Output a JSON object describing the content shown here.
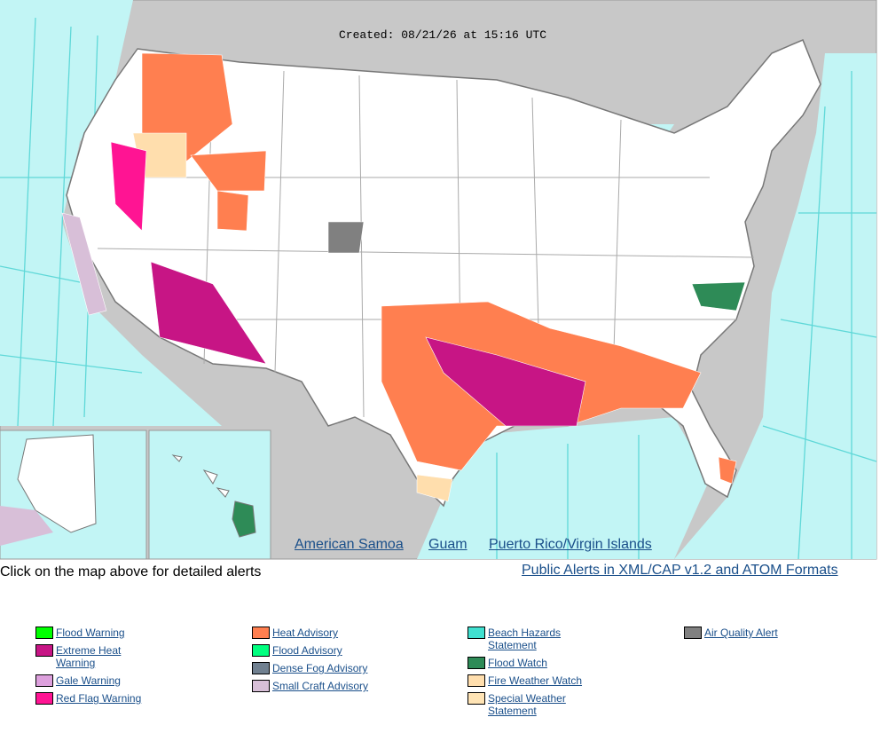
{
  "header": {
    "created": "Created: 08/21/26 at 15:16 UTC"
  },
  "map_links": [
    "American Samoa",
    "Guam",
    "Puerto Rico/Virgin Islands"
  ],
  "instructions": "Click on the map above for detailed alerts",
  "feed_link": "Public Alerts in XML/CAP v1.2 and ATOM Formats",
  "legend": {
    "columns": [
      [
        {
          "label": "Flood Warning",
          "color": "#00ff00"
        },
        {
          "label": "Extreme Heat Warning",
          "color": "#c71585"
        },
        {
          "label": "Gale Warning",
          "color": "#dda0dd"
        },
        {
          "label": "Red Flag Warning",
          "color": "#ff1493"
        }
      ],
      [
        {
          "label": "Heat Advisory",
          "color": "#ff7f50"
        },
        {
          "label": "Flood Advisory",
          "color": "#00ff7f"
        },
        {
          "label": "Dense Fog Advisory",
          "color": "#708090"
        },
        {
          "label": "Small Craft Advisory",
          "color": "#d8bfd8"
        }
      ],
      [
        {
          "label": "Beach Hazards Statement",
          "color": "#40e0d0"
        },
        {
          "label": "Flood Watch",
          "color": "#2e8b57"
        },
        {
          "label": "Fire Weather Watch",
          "color": "#ffdead"
        },
        {
          "label": "Special Weather Statement",
          "color": "#ffe4b5"
        }
      ],
      [
        {
          "label": "Air Quality Alert",
          "color": "#808080"
        }
      ]
    ]
  }
}
